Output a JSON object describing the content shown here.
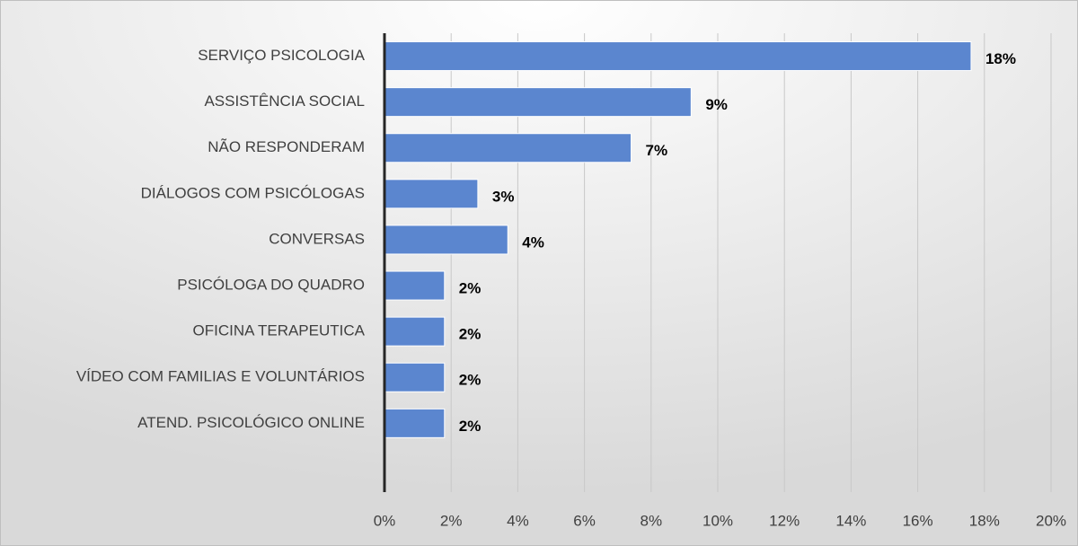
{
  "chart_data": {
    "type": "bar",
    "orientation": "horizontal",
    "categories": [
      "SERVIÇO PSICOLOGIA",
      "ASSISTÊNCIA SOCIAL",
      "NÃO RESPONDERAM",
      "DIÁLOGOS COM PSICÓLOGAS",
      "CONVERSAS",
      "PSICÓLOGA DO QUADRO",
      "OFICINA TERAPEUTICA",
      "VÍDEO COM FAMILIAS E VOLUNTÁRIOS",
      "ATEND. PSICOLÓGICO ONLINE"
    ],
    "values": [
      17.6,
      9.2,
      7.4,
      2.8,
      3.7,
      1.8,
      1.8,
      1.8,
      1.8
    ],
    "value_labels": [
      "18%",
      "9%",
      "7%",
      "3%",
      "4%",
      "2%",
      "2%",
      "2%",
      "2%"
    ],
    "color": "#5b86cf",
    "xlim": [
      0,
      20
    ],
    "xticks": [
      {
        "value": 0,
        "label": "0%"
      },
      {
        "value": 2,
        "label": "2%"
      },
      {
        "value": 4,
        "label": "4%"
      },
      {
        "value": 6,
        "label": "6%"
      },
      {
        "value": 8,
        "label": "8%"
      },
      {
        "value": 10,
        "label": "10%"
      },
      {
        "value": 12,
        "label": "12%"
      },
      {
        "value": 14,
        "label": "14%"
      },
      {
        "value": 16,
        "label": "16%"
      },
      {
        "value": 18,
        "label": "18%"
      },
      {
        "value": 20,
        "label": "20%"
      }
    ],
    "grid": true
  }
}
